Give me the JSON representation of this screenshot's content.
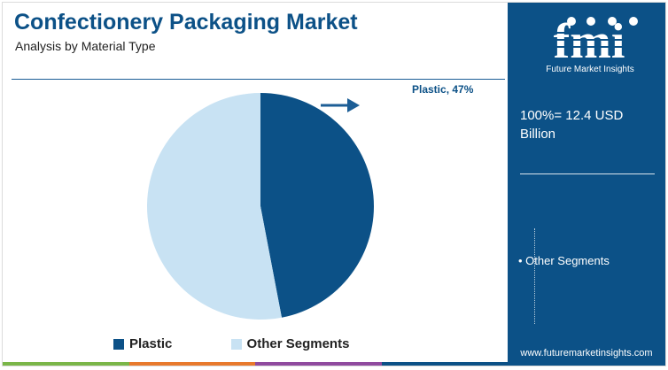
{
  "header": {
    "title": "Confectionery Packaging Market",
    "subtitle": "Analysis by Material Type"
  },
  "chart_data": {
    "type": "pie",
    "title": "Confectionery Packaging Market",
    "subtitle": "Analysis by Material Type",
    "slices": [
      {
        "name": "Plastic",
        "value": 47,
        "color": "#0c5187"
      },
      {
        "name": "Other Segments",
        "value": 53,
        "color": "#c8e2f3"
      }
    ],
    "callout": "Plastic, 47%",
    "legend_position": "bottom"
  },
  "legend": {
    "items": [
      {
        "label": "Plastic",
        "color": "#0c5187"
      },
      {
        "label": "Other Segments",
        "color": "#c8e2f3"
      }
    ]
  },
  "side_panel": {
    "logo_text": "fmi",
    "logo_subtitle": "Future Market Insights",
    "total": "100%= 12.4 USD Billion",
    "bullet": "• Other Segments",
    "url": "www.futuremarketinsights.com"
  },
  "colors": {
    "primary": "#0c5187",
    "light": "#c8e2f3",
    "footer_stripes": [
      "#7ab648",
      "#e8792c",
      "#8f4a9e",
      "#0c5187"
    ]
  }
}
